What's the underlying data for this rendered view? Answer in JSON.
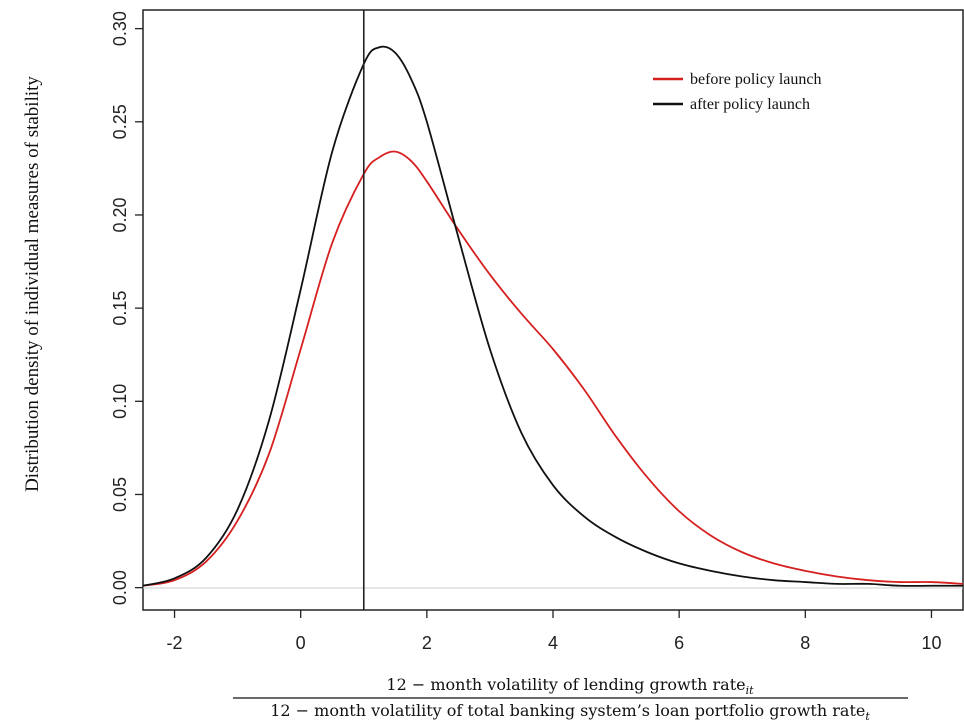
{
  "chart_data": {
    "type": "line",
    "title": "",
    "ylabel": "Distribution density of individual measures of stability",
    "xlabel": {
      "numerator": "12 − month volatility of lending growth rate",
      "numerator_subscript": "it",
      "denominator": "12 − month volatility of total banking system’s loan portfolio growth rate",
      "denominator_subscript": "t"
    },
    "xlim": [
      -2.5,
      10.5
    ],
    "ylim": [
      -0.012,
      0.31
    ],
    "xticks": [
      -2,
      0,
      2,
      4,
      6,
      8,
      10
    ],
    "yticks": [
      0.0,
      0.05,
      0.1,
      0.15,
      0.2,
      0.25,
      0.3
    ],
    "ytick_labels": [
      "0.00",
      "0.05",
      "0.10",
      "0.15",
      "0.20",
      "0.25",
      "0.30"
    ],
    "grid": false,
    "legend_position": "top-right",
    "vline_x": 1.0,
    "series": [
      {
        "name": "before policy launch",
        "color": "#d62020",
        "x": [
          -2.5,
          -2.0,
          -1.5,
          -1.0,
          -0.5,
          0.0,
          0.5,
          1.0,
          1.25,
          1.5,
          1.75,
          2.0,
          2.5,
          3.0,
          3.5,
          4.0,
          4.5,
          5.0,
          5.5,
          6.0,
          6.5,
          7.0,
          7.5,
          8.0,
          8.5,
          9.0,
          9.5,
          10.0,
          10.5
        ],
        "y": [
          0.001,
          0.004,
          0.014,
          0.036,
          0.072,
          0.128,
          0.185,
          0.222,
          0.231,
          0.234,
          0.229,
          0.218,
          0.192,
          0.168,
          0.147,
          0.128,
          0.106,
          0.081,
          0.059,
          0.041,
          0.028,
          0.019,
          0.013,
          0.009,
          0.006,
          0.004,
          0.003,
          0.003,
          0.002
        ]
      },
      {
        "name": "after policy launch",
        "color": "#111111",
        "x": [
          -2.5,
          -2.0,
          -1.5,
          -1.0,
          -0.5,
          0.0,
          0.5,
          1.0,
          1.25,
          1.5,
          1.75,
          2.0,
          2.5,
          3.0,
          3.5,
          4.0,
          4.5,
          5.0,
          5.5,
          6.0,
          6.5,
          7.0,
          7.5,
          8.0,
          8.5,
          9.0,
          9.5,
          10.0,
          10.5
        ],
        "y": [
          0.001,
          0.005,
          0.016,
          0.042,
          0.09,
          0.16,
          0.234,
          0.281,
          0.29,
          0.287,
          0.273,
          0.25,
          0.188,
          0.128,
          0.083,
          0.055,
          0.038,
          0.027,
          0.019,
          0.013,
          0.009,
          0.006,
          0.004,
          0.003,
          0.002,
          0.002,
          0.001,
          0.001,
          0.001
        ]
      }
    ]
  }
}
